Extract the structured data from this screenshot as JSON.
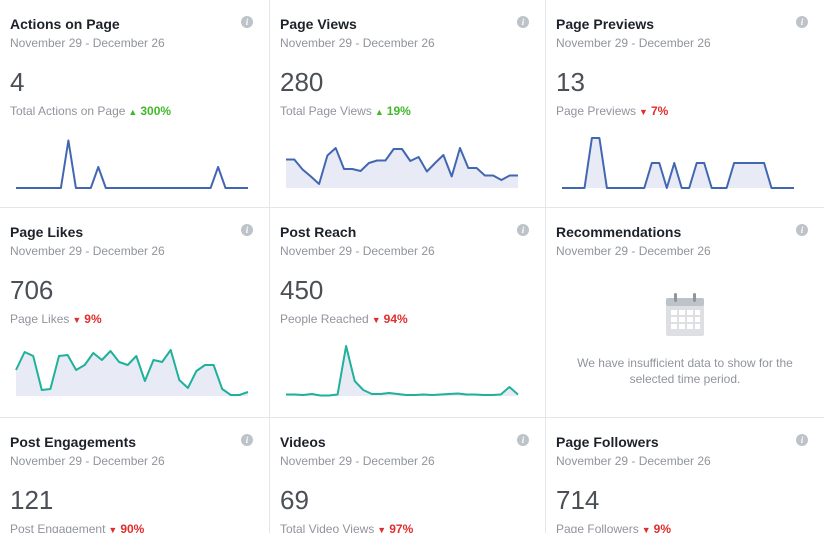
{
  "cards": [
    {
      "title": "Actions on Page",
      "range": "November 29 - December 26",
      "value": "4",
      "sub_label": "Total Actions on Page",
      "change": "300%",
      "direction": "up",
      "color": "#4267b2",
      "fill": "none",
      "series": [
        0,
        0,
        0,
        0,
        0,
        0,
        0,
        0.95,
        0,
        0,
        0,
        0.42,
        0,
        0,
        0,
        0,
        0,
        0,
        0,
        0,
        0,
        0,
        0,
        0,
        0,
        0,
        0,
        0.42,
        0,
        0,
        0,
        0
      ]
    },
    {
      "title": "Page Views",
      "range": "November 29 - December 26",
      "value": "280",
      "sub_label": "Total Page Views",
      "change": "19%",
      "direction": "up",
      "color": "#4267b2",
      "fill": "#e8ebf5",
      "series": [
        0.57,
        0.57,
        0.37,
        0.23,
        0.08,
        0.65,
        0.8,
        0.38,
        0.38,
        0.34,
        0.5,
        0.55,
        0.55,
        0.78,
        0.78,
        0.54,
        0.62,
        0.33,
        0.5,
        0.66,
        0.23,
        0.8,
        0.4,
        0.4,
        0.25,
        0.25,
        0.16,
        0.25,
        0.25
      ]
    },
    {
      "title": "Page Previews",
      "range": "November 29 - December 26",
      "value": "13",
      "sub_label": "Page Previews",
      "change": "7%",
      "direction": "down",
      "color": "#4267b2",
      "fill": "#e8ebf5",
      "series": [
        0,
        0,
        0,
        0,
        1,
        1,
        0,
        0,
        0,
        0,
        0,
        0,
        0.5,
        0.5,
        0,
        0.5,
        0,
        0,
        0.5,
        0.5,
        0,
        0,
        0,
        0.5,
        0.5,
        0.5,
        0.5,
        0.5,
        0,
        0,
        0,
        0
      ]
    },
    {
      "title": "Page Likes",
      "range": "November 29 - December 26",
      "value": "706",
      "sub_label": "Page Likes",
      "change": "9%",
      "direction": "down",
      "color": "#1fb19a",
      "fill": "#e8ebf5",
      "series": [
        0.52,
        0.88,
        0.8,
        0.12,
        0.14,
        0.8,
        0.82,
        0.52,
        0.62,
        0.86,
        0.72,
        0.9,
        0.68,
        0.62,
        0.8,
        0.3,
        0.72,
        0.68,
        0.92,
        0.32,
        0.16,
        0.5,
        0.62,
        0.62,
        0.14,
        0.02,
        0.02,
        0.08
      ]
    },
    {
      "title": "Post Reach",
      "range": "November 29 - December 26",
      "value": "450",
      "sub_label": "People Reached",
      "change": "94%",
      "direction": "down",
      "color": "#1fb19a",
      "fill": "#e8ebf5",
      "series": [
        0.03,
        0.03,
        0.02,
        0.04,
        0.01,
        0.01,
        0.03,
        1,
        0.3,
        0.12,
        0.04,
        0.04,
        0.06,
        0.04,
        0.02,
        0.02,
        0.03,
        0.02,
        0.03,
        0.04,
        0.05,
        0.03,
        0.03,
        0.02,
        0.02,
        0.03,
        0.18,
        0.03
      ]
    },
    {
      "title": "Recommendations",
      "range": "November 29 - December 26",
      "empty_message": "We have insufficient data to show for the selected time period.",
      "icon": "calendar-icon"
    },
    {
      "title": "Post Engagements",
      "range": "November 29 - December 26",
      "value": "121",
      "sub_label": "Post Engagement",
      "change": "90%",
      "direction": "down"
    },
    {
      "title": "Videos",
      "range": "November 29 - December 26",
      "value": "69",
      "sub_label": "Total Video Views",
      "change": "97%",
      "direction": "down"
    },
    {
      "title": "Page Followers",
      "range": "November 29 - December 26",
      "value": "714",
      "sub_label": "Page Followers",
      "change": "9%",
      "direction": "down"
    }
  ]
}
